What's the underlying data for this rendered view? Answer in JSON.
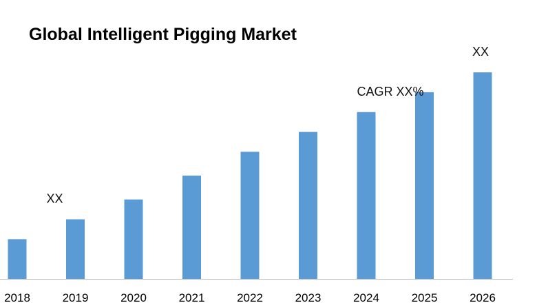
{
  "chart_data": {
    "type": "bar",
    "title": "Global Intelligent Pigging Market",
    "categories": [
      "2018",
      "2019",
      "2020",
      "2021",
      "2022",
      "2023",
      "2024",
      "2025",
      "2026"
    ],
    "values": [
      1.0,
      1.5,
      2.0,
      2.6,
      3.2,
      3.7,
      4.2,
      4.7,
      5.2
    ],
    "ylim": [
      0,
      5.6
    ],
    "xlabel": "",
    "ylabel": "",
    "grid": false,
    "bar_color": "#5b9bd5",
    "annotations": [
      {
        "text": "XX",
        "category": "2019"
      },
      {
        "text": "CAGR XX%",
        "category": "2024"
      },
      {
        "text": "XX",
        "category": "2026"
      }
    ]
  }
}
